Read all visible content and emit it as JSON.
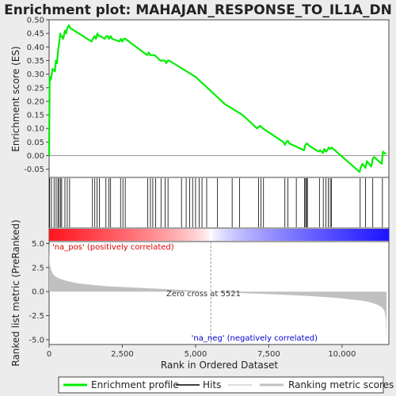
{
  "chart_data": {
    "type": "line",
    "title": "Enrichment plot: MAHAJAN_RESPONSE_TO_IL1A_DN",
    "xlabel": "Rank in Ordered Dataset",
    "ylabel_top": "Enrichment score (ES)",
    "ylabel_bottom": "Ranked list metric (PreRanked)",
    "x_range": [
      0,
      11600
    ],
    "x_ticks": [
      0,
      2500,
      5000,
      7500,
      10000
    ],
    "x_tick_labels": [
      "0",
      "2,500",
      "5,000",
      "7,500",
      "10,000"
    ],
    "es_ylim": [
      -0.08,
      0.5
    ],
    "es_ticks": [
      0.5,
      0.45,
      0.4,
      0.35,
      0.3,
      0.25,
      0.2,
      0.15,
      0.1,
      0.05,
      0.0,
      -0.05
    ],
    "es_tick_labels": [
      "0.50",
      "0.45",
      "0.40",
      "0.35",
      "0.30",
      "0.25",
      "0.20",
      "0.15",
      "0.10",
      "0.05",
      "0.00",
      "-0.05"
    ],
    "metric_ylim": [
      -5.5,
      5.2
    ],
    "metric_ticks": [
      5.0,
      2.5,
      0.0,
      -2.5,
      -5.0
    ],
    "metric_tick_labels": [
      "5.0",
      "2.5",
      "0.0",
      "-2.5",
      "-5.0"
    ],
    "zero_cross_label": "Zero cross at 5521",
    "zero_cross": 5521,
    "pos_label": "'na_pos' (positively correlated)",
    "neg_label": "'na_neg' (negatively correlated)",
    "series": [
      {
        "name": "Enrichment profile",
        "color": "#00ee00",
        "x": [
          0,
          20,
          60,
          120,
          200,
          230,
          270,
          300,
          350,
          380,
          400,
          430,
          480,
          540,
          580,
          620,
          680,
          720,
          1450,
          1500,
          1550,
          1600,
          1650,
          1700,
          1750,
          1900,
          1950,
          2000,
          2050,
          2100,
          2150,
          2400,
          2450,
          2500,
          2550,
          2600,
          3350,
          3400,
          3450,
          3500,
          3600,
          3800,
          3950,
          4000,
          4050,
          4100,
          5000,
          6000,
          6300,
          6600,
          7100,
          7200,
          7300,
          8000,
          8050,
          8100,
          8150,
          8200,
          8400,
          8700,
          8750,
          8800,
          8900,
          9200,
          9250,
          9350,
          9400,
          9450,
          9500,
          9550,
          9600,
          9650,
          10600,
          10650,
          10700,
          10800,
          10850,
          11000,
          11050,
          11100,
          11350,
          11400,
          11500
        ],
        "y": [
          0.0,
          0.29,
          0.28,
          0.32,
          0.31,
          0.35,
          0.34,
          0.38,
          0.42,
          0.45,
          0.44,
          0.44,
          0.43,
          0.46,
          0.45,
          0.47,
          0.48,
          0.47,
          0.42,
          0.43,
          0.44,
          0.43,
          0.45,
          0.44,
          0.44,
          0.43,
          0.44,
          0.44,
          0.43,
          0.44,
          0.43,
          0.42,
          0.43,
          0.42,
          0.43,
          0.43,
          0.37,
          0.38,
          0.37,
          0.37,
          0.37,
          0.35,
          0.35,
          0.34,
          0.35,
          0.35,
          0.29,
          0.19,
          0.17,
          0.15,
          0.1,
          0.11,
          0.1,
          0.05,
          0.04,
          0.05,
          0.055,
          0.045,
          0.035,
          0.02,
          0.04,
          0.045,
          0.035,
          0.015,
          0.02,
          0.01,
          0.025,
          0.015,
          0.02,
          0.03,
          0.025,
          0.03,
          -0.06,
          -0.04,
          -0.03,
          -0.045,
          -0.02,
          -0.04,
          -0.01,
          -0.005,
          -0.03,
          0.015,
          0.005
        ]
      },
      {
        "name": "Hits",
        "color": "#000000",
        "x": [
          20,
          80,
          170,
          240,
          300,
          340,
          390,
          430,
          540,
          620,
          700,
          1480,
          1560,
          1640,
          1720,
          1940,
          2040,
          2100,
          2440,
          2520,
          2600,
          3370,
          3460,
          3540,
          3640,
          3820,
          3960,
          4060,
          4520,
          4680,
          4800,
          4900,
          5000,
          5120,
          5220,
          5380,
          5750,
          6250,
          6500,
          7150,
          7230,
          7320,
          8050,
          8150,
          8440,
          8720,
          8760,
          8790,
          8820,
          9230,
          9360,
          9450,
          9530,
          9600,
          9640,
          10620,
          10800,
          11050,
          11380
        ]
      },
      {
        "name": "Ranking metric scores",
        "color": "#c0c0c0",
        "x": [
          0,
          20,
          60,
          120,
          200,
          350,
          600,
          1000,
          1500,
          2000,
          3000,
          4000,
          5000,
          5521,
          6000,
          7000,
          8000,
          9000,
          9500,
          10000,
          10500,
          10800,
          11000,
          11200,
          11350,
          11450,
          11500,
          11520
        ],
        "y": [
          5.0,
          3.0,
          2.3,
          1.9,
          1.6,
          1.35,
          1.1,
          0.85,
          0.68,
          0.55,
          0.4,
          0.25,
          0.1,
          0.0,
          -0.1,
          -0.2,
          -0.32,
          -0.48,
          -0.58,
          -0.7,
          -0.88,
          -1.0,
          -1.15,
          -1.35,
          -1.6,
          -2.0,
          -2.8,
          -5.1
        ]
      }
    ],
    "legend": [
      "Enrichment profile",
      "Hits",
      "",
      "Ranking metric scores"
    ],
    "legend_colors": {
      "Enrichment profile": "#00ee00",
      "Hits": "#000000",
      "Ranking metric scores": "#c0c0c0",
      "divider": "#b8b8b8"
    },
    "colors": {
      "pos_label": "#dd0000",
      "neg_label": "#0000cc",
      "zero_cross_line": "#9a9a9a",
      "background": "#ececec"
    }
  }
}
